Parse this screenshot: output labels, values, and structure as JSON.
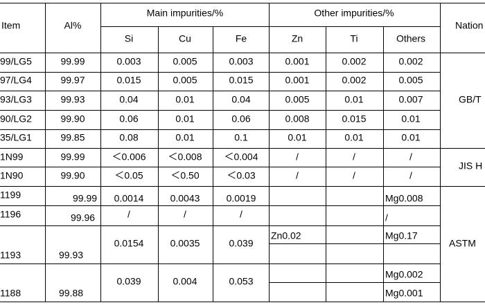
{
  "header": {
    "item": "Item",
    "al": "Al%",
    "main": "Main impurities/%",
    "other": "Other impurities/%",
    "national": "Nation",
    "si": "Si",
    "cu": "Cu",
    "fe": "Fe",
    "zn": "Zn",
    "ti": "Ti",
    "others": "Others"
  },
  "rows": [
    [
      "99/LG5",
      "99.99",
      "0.003",
      "0.005",
      "0.003",
      "0.001",
      "0.002",
      "0.002"
    ],
    [
      "97/LG4",
      "99.97",
      "0.015",
      "0.005",
      "0.015",
      "0.001",
      "0.002",
      "0.005"
    ],
    [
      "93/LG3",
      "99.93",
      "0.04",
      "0.01",
      "0.04",
      "0.005",
      "0.01",
      "0.007"
    ],
    [
      "90/LG2",
      "99.90",
      "0.06",
      "0.01",
      "0.06",
      "0.008",
      "0.015",
      "0.01"
    ],
    [
      "35/LG1",
      "99.85",
      "0.08",
      "0.01",
      "0.1",
      "0.01",
      "0.01",
      "0.01"
    ],
    [
      "1N99",
      "99.99",
      "＜0.006",
      "＜0.008",
      "＜0.004",
      "/",
      "/",
      "/"
    ],
    [
      "1N90",
      "99.90",
      "＜0.05",
      "＜0.50",
      "＜0.03",
      "/",
      "/",
      "/"
    ]
  ],
  "standards": [
    "GB/T",
    "JIS H",
    "ASTM"
  ],
  "astm": [
    {
      "item": "1199",
      "al": "99.99",
      "si": "0.0014",
      "cu": "0.0043",
      "fe": "0.0019",
      "others": "Mg0.008"
    },
    {
      "item": "1196",
      "al": "99.96",
      "si": "/",
      "cu": "/",
      "fe": "/",
      "others": "/"
    },
    {
      "item": "1193",
      "al": "99.93",
      "si": "0.0154",
      "cu": "0.0035",
      "fe": "0.039",
      "zn": "Zn0.02",
      "others": "Mg0.17"
    },
    {
      "item": "1188",
      "al": "99.88",
      "si": "0.039",
      "cu": "0.004",
      "fe": "0.053",
      "others": [
        "Mg0.002",
        "Mg0.001"
      ]
    }
  ]
}
